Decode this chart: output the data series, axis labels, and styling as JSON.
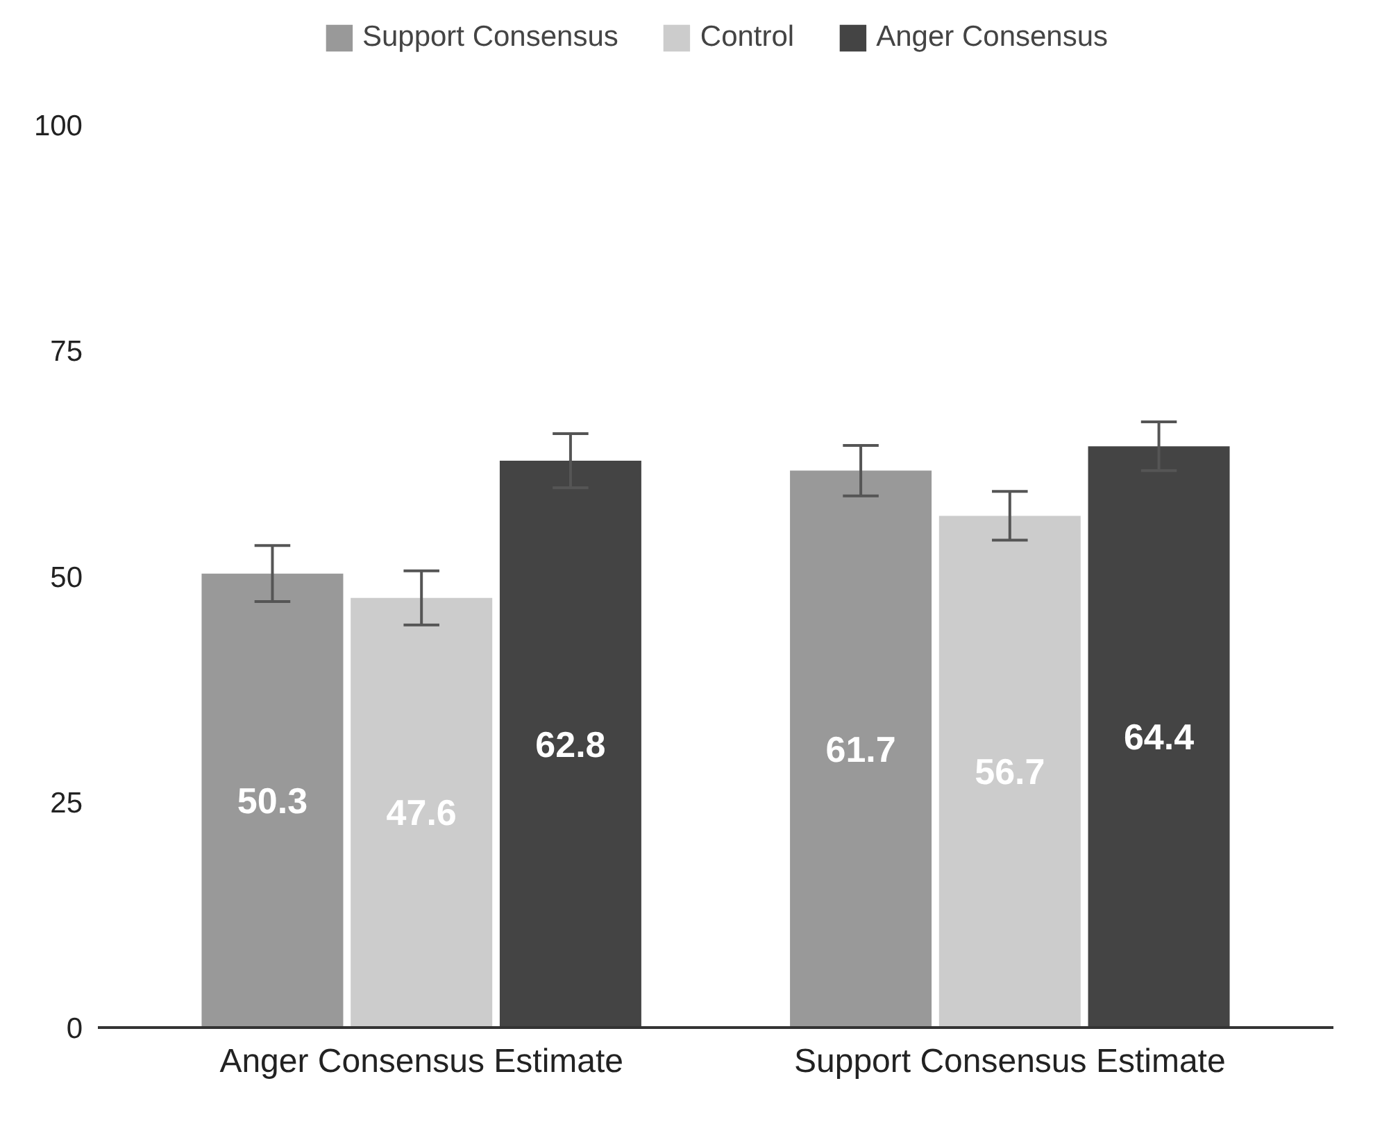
{
  "chart_data": {
    "type": "bar",
    "categories": [
      "Anger Consensus Estimate",
      "Support Consensus Estimate"
    ],
    "series": [
      {
        "name": "Support Consensus",
        "color": "#999999",
        "values": [
          50.3,
          61.7
        ],
        "errors": [
          3.1,
          2.8
        ]
      },
      {
        "name": "Control",
        "color": "#cccccc",
        "values": [
          47.6,
          56.7
        ],
        "errors": [
          3.0,
          2.7
        ]
      },
      {
        "name": "Anger Consensus",
        "color": "#444444",
        "values": [
          62.8,
          64.4
        ],
        "errors": [
          3.0,
          2.7
        ]
      }
    ],
    "ylim": [
      0,
      100
    ],
    "yticks": [
      0,
      25,
      50,
      75,
      100
    ],
    "grid": false,
    "legend": "top",
    "data_labels": true
  }
}
